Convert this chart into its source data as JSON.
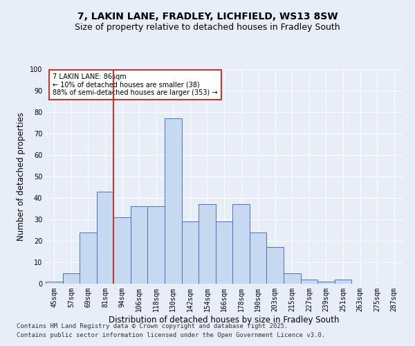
{
  "title1": "7, LAKIN LANE, FRADLEY, LICHFIELD, WS13 8SW",
  "title2": "Size of property relative to detached houses in Fradley South",
  "xlabel": "Distribution of detached houses by size in Fradley South",
  "ylabel": "Number of detached properties",
  "footnote1": "Contains HM Land Registry data © Crown copyright and database right 2025.",
  "footnote2": "Contains public sector information licensed under the Open Government Licence v3.0.",
  "categories": [
    "45sqm",
    "57sqm",
    "69sqm",
    "81sqm",
    "94sqm",
    "106sqm",
    "118sqm",
    "130sqm",
    "142sqm",
    "154sqm",
    "166sqm",
    "178sqm",
    "190sqm",
    "203sqm",
    "215sqm",
    "227sqm",
    "239sqm",
    "251sqm",
    "263sqm",
    "275sqm",
    "287sqm"
  ],
  "values": [
    1,
    5,
    24,
    43,
    31,
    36,
    36,
    77,
    29,
    37,
    29,
    37,
    24,
    17,
    5,
    2,
    1,
    2,
    0,
    0,
    0
  ],
  "bar_color": "#c6d9f0",
  "bar_edge_color": "#4472c4",
  "vline_x": 3.5,
  "vline_color": "#c0392b",
  "annotation_text": "7 LAKIN LANE: 86sqm\n← 10% of detached houses are smaller (38)\n88% of semi-detached houses are larger (353) →",
  "annotation_box_color": "#c0392b",
  "annotation_box_facecolor": "white",
  "ylim": [
    0,
    100
  ],
  "yticks": [
    0,
    10,
    20,
    30,
    40,
    50,
    60,
    70,
    80,
    90,
    100
  ],
  "bg_color": "#e8eef7",
  "plot_bg_color": "#e8eef7",
  "grid_color": "white",
  "title_fontsize": 10,
  "subtitle_fontsize": 9,
  "tick_fontsize": 7,
  "label_fontsize": 8.5,
  "footnote_fontsize": 6.5
}
